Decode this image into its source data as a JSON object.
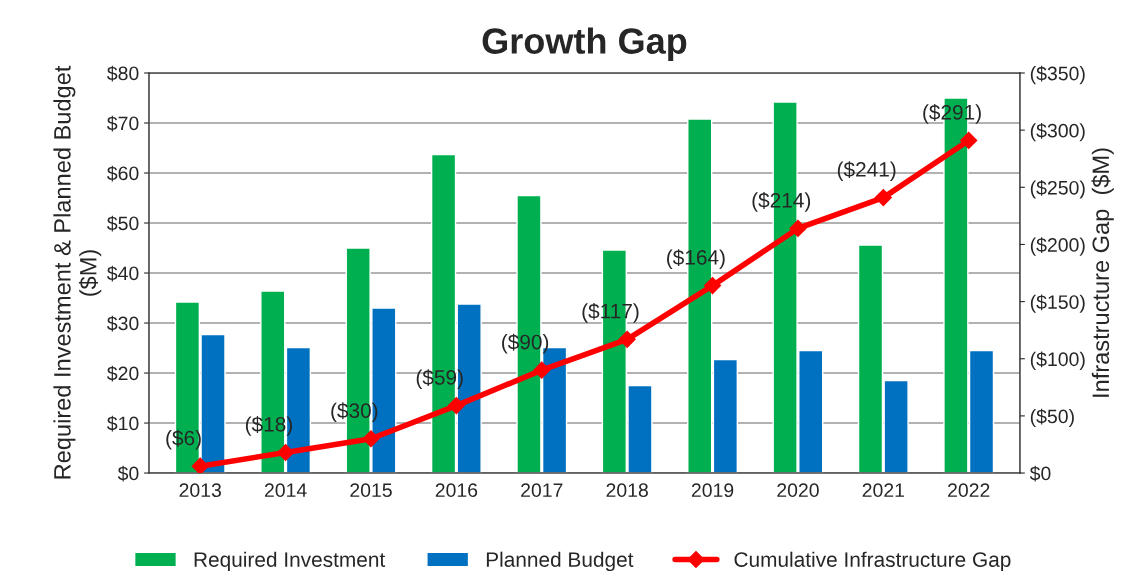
{
  "chart_data": {
    "type": "bar",
    "title": "Growth Gap",
    "ylabel": "Required Investment & Planned Budget\n($M)",
    "y2label": "Infrastructure Gap  ($M)",
    "categories": [
      "2013",
      "2014",
      "2015",
      "2016",
      "2017",
      "2018",
      "2019",
      "2020",
      "2021",
      "2022"
    ],
    "series": [
      {
        "name": "Required Investment",
        "color": "#00b050",
        "values": [
          34.2,
          36.4,
          45,
          63.7,
          55.5,
          44.6,
          70.8,
          74.2,
          45.6,
          75
        ]
      },
      {
        "name": "Planned Budget",
        "color": "#0070c0",
        "values": [
          27.7,
          25.1,
          33,
          33.8,
          25.1,
          17.5,
          22.7,
          24.5,
          18.5,
          24.5
        ]
      },
      {
        "name": "Cumulative Infrastructure Gap",
        "type": "line",
        "axis": "y2",
        "color": "#ff0000",
        "marker": "diamond",
        "values": [
          6,
          18,
          30,
          59,
          90,
          117,
          164,
          214,
          241,
          291
        ],
        "value_labels": [
          "($6)",
          "($18)",
          "($30)",
          "($59)",
          "($90)",
          "($117)",
          "($164)",
          "($214)",
          "($241)",
          "($291)"
        ]
      }
    ],
    "ylim": [
      0,
      80
    ],
    "yticks": [
      {
        "value": 0,
        "label": "$0"
      },
      {
        "value": 10,
        "label": "$10"
      },
      {
        "value": 20,
        "label": "$20"
      },
      {
        "value": 30,
        "label": "$30"
      },
      {
        "value": 40,
        "label": "$40"
      },
      {
        "value": 50,
        "label": "$50"
      },
      {
        "value": 60,
        "label": "$60"
      },
      {
        "value": 70,
        "label": "$70"
      },
      {
        "value": 80,
        "label": "$80"
      }
    ],
    "y2lim": [
      0,
      350
    ],
    "y2ticks": [
      {
        "value": 0,
        "label": "$0"
      },
      {
        "value": 50,
        "label": "($50)"
      },
      {
        "value": 100,
        "label": "($100)"
      },
      {
        "value": 150,
        "label": "($150)"
      },
      {
        "value": 200,
        "label": "($200)"
      },
      {
        "value": 250,
        "label": "($250)"
      },
      {
        "value": 300,
        "label": "($300)"
      },
      {
        "value": 350,
        "label": "($350)"
      }
    ],
    "grid": "y",
    "legend": "bottom"
  }
}
